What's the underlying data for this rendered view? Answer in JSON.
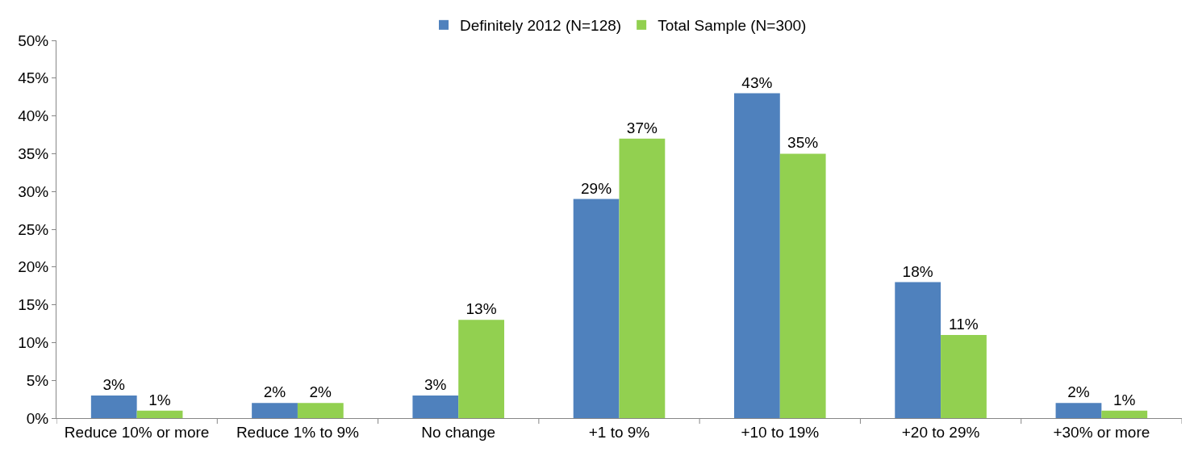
{
  "chart_data": {
    "type": "bar",
    "categories": [
      "Reduce 10% or more",
      "Reduce 1% to 9%",
      "No change",
      "+1 to 9%",
      "+10 to 19%",
      "+20 to 29%",
      "+30% or more"
    ],
    "series": [
      {
        "name": "Definitely 2012 (N=128)",
        "color": "#4f81bd",
        "values": [
          3,
          2,
          3,
          29,
          43,
          18,
          2
        ],
        "value_labels": [
          "3%",
          "2%",
          "3%",
          "29%",
          "43%",
          "18%",
          "2%"
        ]
      },
      {
        "name": "Total Sample (N=300)",
        "color": "#92d050",
        "values": [
          1,
          2,
          13,
          37,
          35,
          11,
          1
        ],
        "value_labels": [
          "1%",
          "2%",
          "13%",
          "37%",
          "35%",
          "11%",
          "1%"
        ]
      }
    ],
    "ylim": [
      0,
      50
    ],
    "yticks": [
      {
        "value": 0,
        "label": "0%"
      },
      {
        "value": 5,
        "label": "5%"
      },
      {
        "value": 10,
        "label": "10%"
      },
      {
        "value": 15,
        "label": "15%"
      },
      {
        "value": 20,
        "label": "20%"
      },
      {
        "value": 25,
        "label": "25%"
      },
      {
        "value": 30,
        "label": "30%"
      },
      {
        "value": 35,
        "label": "35%"
      },
      {
        "value": 40,
        "label": "40%"
      },
      {
        "value": 45,
        "label": "45%"
      },
      {
        "value": 50,
        "label": "50%"
      }
    ],
    "legend": "top"
  }
}
